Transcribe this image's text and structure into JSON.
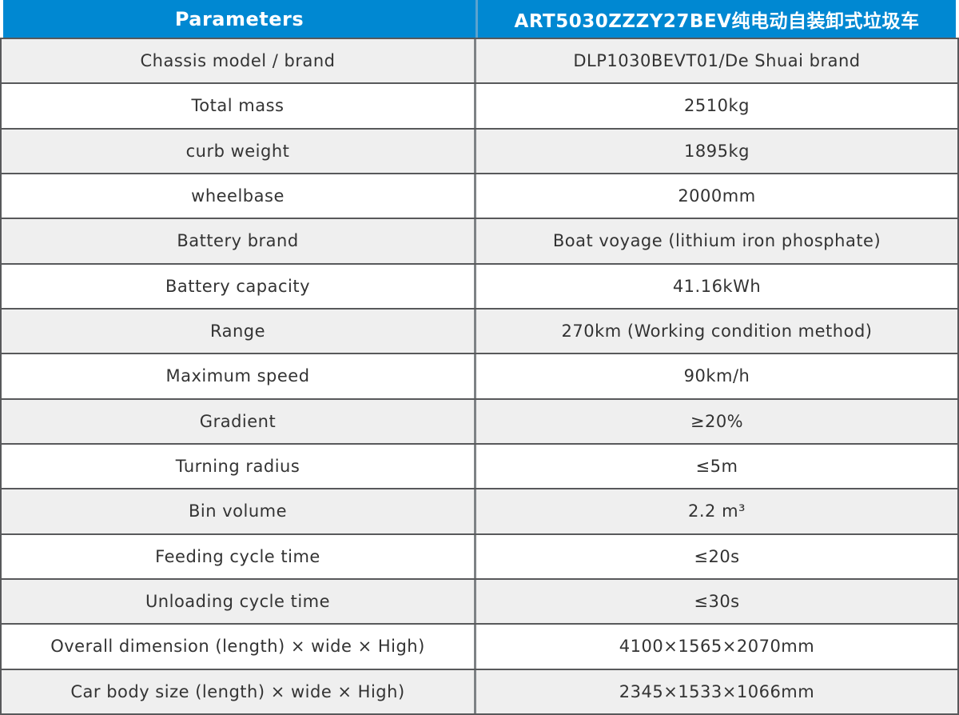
{
  "table": {
    "header": {
      "parameters_label": "Parameters",
      "model_title": "ART5030ZZZY27BEV纯电动自装卸式垃圾车"
    },
    "rows": [
      {
        "label": "Chassis model / brand",
        "value": "DLP1030BEVT01/De Shuai brand"
      },
      {
        "label": "Total mass",
        "value": "2510kg"
      },
      {
        "label": "curb weight",
        "value": "1895kg"
      },
      {
        "label": "wheelbase",
        "value": "2000mm"
      },
      {
        "label": "Battery brand",
        "value": "Boat voyage (lithium iron phosphate)"
      },
      {
        "label": "Battery capacity",
        "value": "41.16kWh"
      },
      {
        "label": "Range",
        "value": "270km (Working condition method)"
      },
      {
        "label": "Maximum speed",
        "value": "90km/h"
      },
      {
        "label": "Gradient",
        "value": "≥20%"
      },
      {
        "label": "Turning radius",
        "value": "≤5m"
      },
      {
        "label": "Bin volume",
        "value": "2.2 m³"
      },
      {
        "label": "Feeding cycle time",
        "value": "≤20s"
      },
      {
        "label": "Unloading cycle time",
        "value": "≤30s"
      },
      {
        "label": "Overall dimension (length) × wide × High)",
        "value": "4100×1565×2070mm"
      },
      {
        "label": "Car body size (length) × wide × High)",
        "value": "2345×1533×1066mm"
      }
    ],
    "colors": {
      "header_bg": "#0088d2",
      "header_text": "#ffffff",
      "row_alt_bg": "#efefef",
      "row_bg": "#ffffff",
      "border_dark": "#58595b",
      "divider": "#7e8285",
      "body_text": "#333333"
    }
  }
}
